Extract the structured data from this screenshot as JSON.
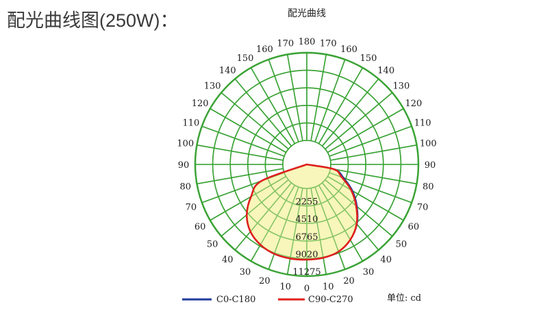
{
  "page": {
    "title": "配光曲线图(250W)："
  },
  "chart_data": {
    "type": "polar-line",
    "title": "配光曲线",
    "unit_label": "单位: cd",
    "angle_ticks_right": [
      "180",
      "170",
      "160",
      "150",
      "140",
      "130",
      "120",
      "110",
      "100",
      "90",
      "80",
      "70",
      "60",
      "50",
      "40",
      "30",
      "20",
      "10",
      "0"
    ],
    "angle_ticks_left": [
      "170",
      "160",
      "150",
      "140",
      "130",
      "120",
      "110",
      "100",
      "90",
      "80",
      "70",
      "60",
      "50",
      "40",
      "30",
      "20",
      "10"
    ],
    "radial_values": [
      2255,
      4510,
      6765,
      9020,
      11275
    ],
    "radial_labels": [
      "2255",
      "4510",
      "6765",
      "9020",
      "11275"
    ],
    "rmax": 11275,
    "grid": true,
    "legend_position": "bottom",
    "series": [
      {
        "name": "C0-C180",
        "color": "#1f3a9e",
        "angles": [
          -90,
          -70,
          -60,
          -50,
          -40,
          -30,
          -20,
          -10,
          0,
          10,
          20,
          30,
          40,
          50,
          60,
          70,
          80,
          90
        ],
        "values": [
          0,
          3100,
          5200,
          7000,
          8200,
          8850,
          9150,
          9200,
          9150,
          9100,
          8850,
          8100,
          6950,
          5350,
          3700,
          1950,
          550,
          0
        ]
      },
      {
        "name": "C90-C270",
        "color": "#e0201c",
        "angles": [
          -90,
          -70,
          -60,
          -50,
          -40,
          -30,
          -20,
          -10,
          0,
          10,
          20,
          30,
          40,
          50,
          60,
          70,
          80,
          90
        ],
        "values": [
          0,
          3100,
          5200,
          7000,
          8200,
          8850,
          9150,
          9200,
          9150,
          9100,
          8850,
          8100,
          6900,
          5200,
          3500,
          1700,
          450,
          0
        ]
      }
    ],
    "colors": {
      "grid": "#3aa335",
      "fill": "#f7f5b3"
    }
  }
}
